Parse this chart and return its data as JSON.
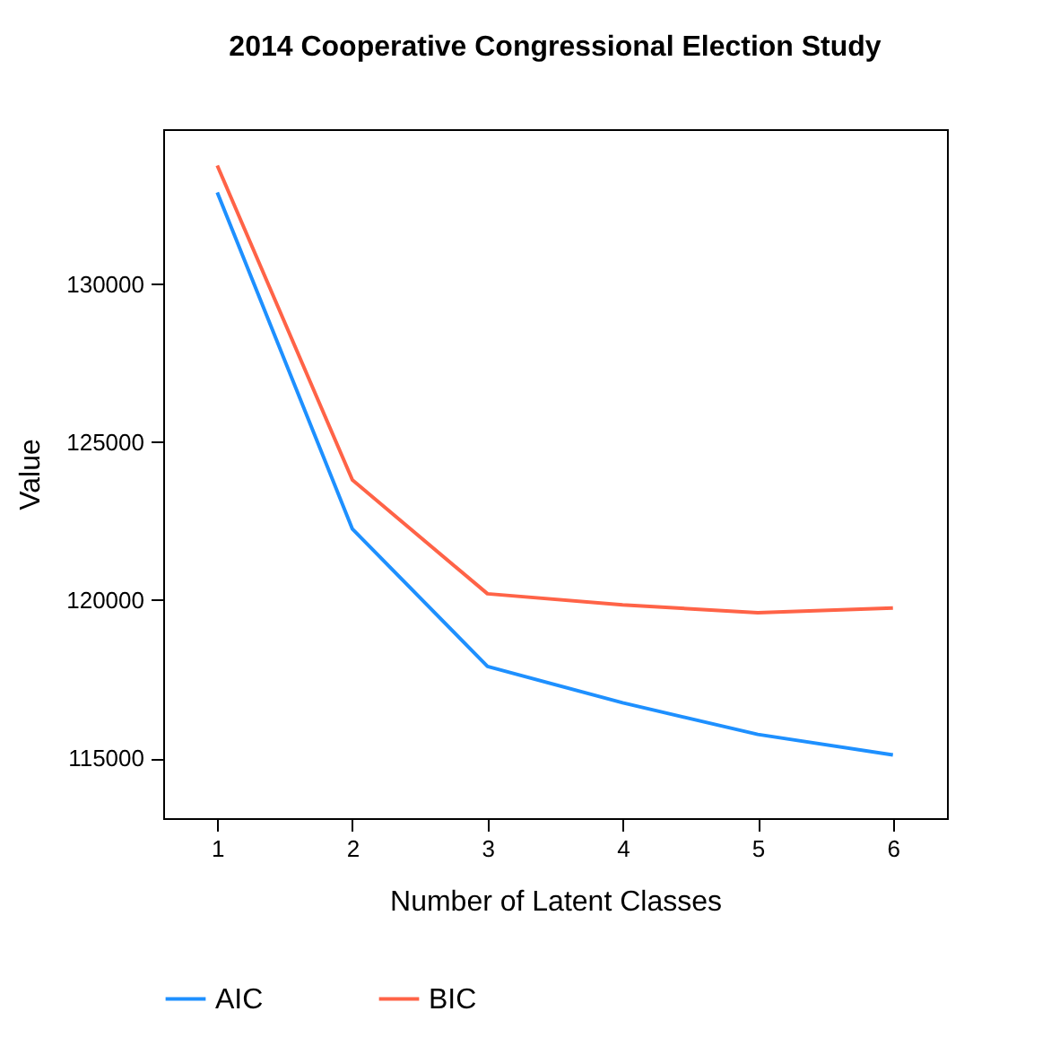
{
  "chart_data": {
    "type": "line",
    "title": "2014 Cooperative Congressional Election Study",
    "xlabel": "Number of Latent Classes",
    "ylabel": "Value",
    "x": [
      1,
      2,
      3,
      4,
      5,
      6
    ],
    "series": [
      {
        "name": "AIC",
        "color": "#1e90ff",
        "values": [
          132900,
          122250,
          117900,
          116750,
          115750,
          115100
        ]
      },
      {
        "name": "BIC",
        "color": "#ff6347",
        "values": [
          133750,
          123800,
          120200,
          119850,
          119600,
          119750
        ]
      }
    ],
    "xlim": [
      0.6,
      6.4
    ],
    "xticks": [
      1,
      2,
      3,
      4,
      5,
      6
    ],
    "ylim": [
      113100,
      134900
    ],
    "yticks": [
      115000,
      120000,
      125000,
      130000
    ],
    "grid": false,
    "legend": "bottom",
    "marker": "none",
    "line_style": "solid"
  }
}
